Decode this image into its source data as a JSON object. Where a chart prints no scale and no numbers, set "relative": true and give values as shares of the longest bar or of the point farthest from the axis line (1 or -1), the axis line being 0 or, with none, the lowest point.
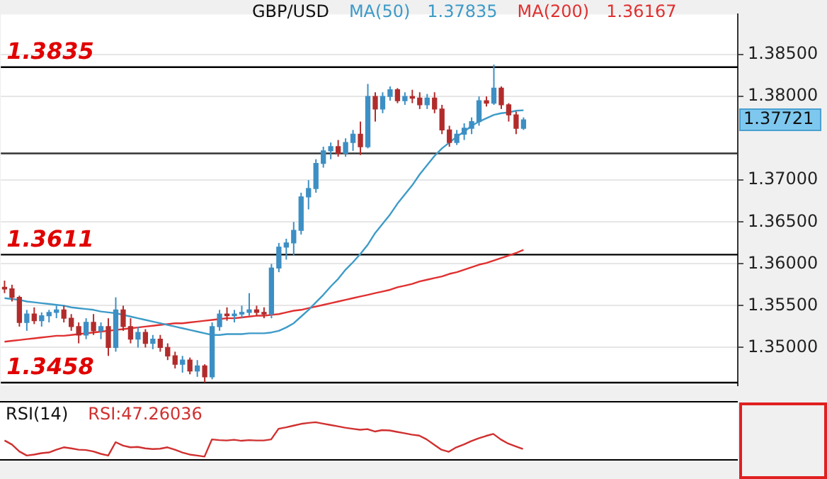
{
  "chart_data": [
    {
      "type": "candlestick",
      "title": "GBP/USD",
      "legend": "top",
      "grid": "y",
      "tick_labels": "y",
      "categories": [
        null,
        null,
        null,
        null,
        null,
        null,
        null,
        null,
        null,
        null,
        null,
        null,
        null,
        null,
        null,
        null,
        null,
        null,
        null,
        null,
        null,
        null,
        null,
        null,
        null,
        null,
        null,
        null,
        null,
        null,
        null,
        null,
        null,
        null,
        null,
        null,
        null,
        null,
        null,
        null,
        null,
        null,
        null,
        null,
        null,
        null,
        null,
        null,
        null,
        null,
        null,
        null,
        null,
        null,
        null,
        null,
        null,
        null,
        null,
        null,
        null,
        null,
        null,
        null,
        null,
        null,
        null,
        null,
        null,
        null,
        null
      ],
      "ohlc": [
        [
          1.3572,
          1.358,
          1.3565,
          1.357
        ],
        [
          1.357,
          1.3575,
          1.3555,
          1.356
        ],
        [
          1.356,
          1.3562,
          1.3525,
          1.353
        ],
        [
          1.353,
          1.3545,
          1.352,
          1.354
        ],
        [
          1.354,
          1.3548,
          1.3528,
          1.3532
        ],
        [
          1.3532,
          1.3542,
          1.3525,
          1.3538
        ],
        [
          1.3538,
          1.3545,
          1.353,
          1.3542
        ],
        [
          1.3542,
          1.355,
          1.3535,
          1.3545
        ],
        [
          1.3545,
          1.355,
          1.353,
          1.3535
        ],
        [
          1.3535,
          1.354,
          1.352,
          1.3525
        ],
        [
          1.3525,
          1.353,
          1.3505,
          1.3515
        ],
        [
          1.3515,
          1.3535,
          1.351,
          1.353
        ],
        [
          1.353,
          1.354,
          1.3515,
          1.352
        ],
        [
          1.352,
          1.353,
          1.351,
          1.3525
        ],
        [
          1.3525,
          1.3535,
          1.349,
          1.35
        ],
        [
          1.35,
          1.356,
          1.3495,
          1.3545
        ],
        [
          1.3545,
          1.355,
          1.352,
          1.3525
        ],
        [
          1.3525,
          1.3535,
          1.3505,
          1.351
        ],
        [
          1.351,
          1.3525,
          1.35,
          1.3518
        ],
        [
          1.3518,
          1.3522,
          1.35,
          1.3505
        ],
        [
          1.3505,
          1.3515,
          1.3498,
          1.351
        ],
        [
          1.351,
          1.3515,
          1.3495,
          1.35
        ],
        [
          1.35,
          1.3505,
          1.3485,
          1.349
        ],
        [
          1.349,
          1.3495,
          1.3475,
          1.348
        ],
        [
          1.348,
          1.349,
          1.347,
          1.3485
        ],
        [
          1.3485,
          1.3488,
          1.3468,
          1.3472
        ],
        [
          1.3472,
          1.3485,
          1.3465,
          1.3478
        ],
        [
          1.3478,
          1.348,
          1.3458,
          1.3465
        ],
        [
          1.3465,
          1.353,
          1.3462,
          1.3525
        ],
        [
          1.3525,
          1.3545,
          1.352,
          1.354
        ],
        [
          1.354,
          1.3548,
          1.3532,
          1.3538
        ],
        [
          1.3538,
          1.3545,
          1.353,
          1.354
        ],
        [
          1.354,
          1.355,
          1.3535,
          1.3542
        ],
        [
          1.3542,
          1.3565,
          1.3538,
          1.3545
        ],
        [
          1.3545,
          1.355,
          1.3538,
          1.3542
        ],
        [
          1.3542,
          1.3548,
          1.3535,
          1.354
        ],
        [
          1.354,
          1.36,
          1.3535,
          1.3595
        ],
        [
          1.3595,
          1.3625,
          1.359,
          1.362
        ],
        [
          1.362,
          1.363,
          1.3605,
          1.3625
        ],
        [
          1.3625,
          1.365,
          1.361,
          1.364
        ],
        [
          1.364,
          1.3685,
          1.3635,
          1.368
        ],
        [
          1.368,
          1.37,
          1.3665,
          1.369
        ],
        [
          1.369,
          1.3725,
          1.3685,
          1.372
        ],
        [
          1.372,
          1.374,
          1.3715,
          1.3735
        ],
        [
          1.3735,
          1.3745,
          1.3725,
          1.374
        ],
        [
          1.374,
          1.3748,
          1.3728,
          1.3732
        ],
        [
          1.3732,
          1.375,
          1.3728,
          1.3745
        ],
        [
          1.3745,
          1.376,
          1.3735,
          1.3755
        ],
        [
          1.3755,
          1.377,
          1.373,
          1.374
        ],
        [
          1.374,
          1.3815,
          1.3738,
          1.38
        ],
        [
          1.38,
          1.3805,
          1.377,
          1.3785
        ],
        [
          1.3785,
          1.3805,
          1.378,
          1.38
        ],
        [
          1.38,
          1.3812,
          1.3795,
          1.3808
        ],
        [
          1.3808,
          1.381,
          1.3792,
          1.3795
        ],
        [
          1.3795,
          1.3805,
          1.379,
          1.38
        ],
        [
          1.38,
          1.3808,
          1.3792,
          1.3798
        ],
        [
          1.3798,
          1.3805,
          1.3785,
          1.379
        ],
        [
          1.379,
          1.3803,
          1.3785,
          1.3798
        ],
        [
          1.3798,
          1.3805,
          1.378,
          1.3785
        ],
        [
          1.3785,
          1.379,
          1.3755,
          1.376
        ],
        [
          1.376,
          1.3765,
          1.374,
          1.3745
        ],
        [
          1.3745,
          1.376,
          1.3742,
          1.3755
        ],
        [
          1.3755,
          1.3768,
          1.3748,
          1.3762
        ],
        [
          1.3762,
          1.3775,
          1.3755,
          1.377
        ],
        [
          1.377,
          1.38,
          1.3765,
          1.3795
        ],
        [
          1.3795,
          1.38,
          1.3788,
          1.3792
        ],
        [
          1.3792,
          1.3838,
          1.379,
          1.381
        ],
        [
          1.381,
          1.3812,
          1.3785,
          1.379
        ],
        [
          1.379,
          1.3792,
          1.377,
          1.3778
        ],
        [
          1.3778,
          1.3782,
          1.3755,
          1.3762
        ],
        [
          1.3762,
          1.3775,
          1.376,
          1.37721
        ]
      ],
      "series": [
        {
          "name": "MA(50)",
          "type": "line",
          "color": "#3d9bc8",
          "values": [
            1.3559,
            1.3558,
            1.3557,
            1.3555,
            1.3554,
            1.3553,
            1.3552,
            1.3551,
            1.355,
            1.3548,
            1.3547,
            1.3546,
            1.3545,
            1.3543,
            1.3542,
            1.3541,
            1.3539,
            1.3537,
            1.3535,
            1.3533,
            1.3531,
            1.3529,
            1.3527,
            1.3525,
            1.3523,
            1.3521,
            1.3519,
            1.3517,
            1.3515,
            1.3515,
            1.3516,
            1.3516,
            1.3516,
            1.3517,
            1.3517,
            1.3517,
            1.3518,
            1.352,
            1.3524,
            1.3529,
            1.3537,
            1.3545,
            1.3554,
            1.3563,
            1.3573,
            1.3582,
            1.3593,
            1.3602,
            1.3612,
            1.3623,
            1.3637,
            1.3648,
            1.3659,
            1.3672,
            1.3683,
            1.3694,
            1.3707,
            1.3718,
            1.3729,
            1.3738,
            1.3745,
            1.3752,
            1.3758,
            1.3765,
            1.377,
            1.3774,
            1.3778,
            1.378,
            1.3781,
            1.3783,
            1.37835
          ]
        },
        {
          "name": "MA(200)",
          "type": "line",
          "color": "#e03030",
          "values": [
            1.3507,
            1.3508,
            1.3509,
            1.351,
            1.3511,
            1.3512,
            1.3513,
            1.3514,
            1.3514,
            1.3515,
            1.3516,
            1.3517,
            1.3518,
            1.3519,
            1.352,
            1.3521,
            1.3522,
            1.3523,
            1.3524,
            1.3525,
            1.3526,
            1.3527,
            1.3528,
            1.3529,
            1.3529,
            1.353,
            1.3531,
            1.3532,
            1.3533,
            1.3534,
            1.3535,
            1.3535,
            1.3536,
            1.3537,
            1.3538,
            1.3538,
            1.3539,
            1.354,
            1.3542,
            1.3544,
            1.3545,
            1.3547,
            1.3549,
            1.3551,
            1.3553,
            1.3555,
            1.3557,
            1.3559,
            1.3561,
            1.3563,
            1.3565,
            1.3567,
            1.3569,
            1.3572,
            1.3574,
            1.3576,
            1.3579,
            1.3581,
            1.3583,
            1.3585,
            1.3588,
            1.359,
            1.3593,
            1.3596,
            1.3599,
            1.3601,
            1.3604,
            1.3607,
            1.361,
            1.3613,
            1.36167
          ]
        }
      ],
      "ylim": [
        1.3455,
        1.3898
      ],
      "yticks": [
        {
          "value": 1.35,
          "label": "1.35000"
        },
        {
          "value": 1.355,
          "label": "1.35500"
        },
        {
          "value": 1.36,
          "label": "1.36000"
        },
        {
          "value": 1.365,
          "label": "1.36500"
        },
        {
          "value": 1.37,
          "label": "1.37000"
        },
        {
          "value": 1.38,
          "label": "1.38000"
        },
        {
          "value": 1.385,
          "label": "1.38500"
        }
      ],
      "ref_lines": [
        {
          "axis": "y",
          "value": 1.3835,
          "label": "1.3835",
          "color": "#000000"
        },
        {
          "axis": "y",
          "value": 1.3611,
          "label": "1.3611",
          "color": "#000000"
        },
        {
          "axis": "y",
          "value": 1.3458,
          "label": "1.3458",
          "color": "#000000"
        },
        {
          "axis": "y",
          "value": 1.3732,
          "color": "#333333"
        }
      ],
      "annotations": [
        "1.37835",
        "1.36167",
        "1.37721"
      ]
    },
    {
      "type": "line",
      "title": "RSI(14)",
      "relative": true,
      "categories": [
        null,
        null,
        null,
        null,
        null,
        null,
        null,
        null,
        null,
        null,
        null,
        null,
        null,
        null,
        null,
        null,
        null,
        null,
        null,
        null,
        null,
        null,
        null,
        null,
        null,
        null,
        null,
        null,
        null,
        null,
        null,
        null,
        null,
        null,
        null,
        null,
        null,
        null,
        null,
        null,
        null,
        null,
        null,
        null,
        null,
        null,
        null,
        null,
        null,
        null,
        null,
        null,
        null,
        null,
        null,
        null,
        null,
        null,
        null,
        null,
        null,
        null,
        null,
        null,
        null,
        null,
        null,
        null,
        null,
        null,
        null
      ],
      "series": [
        {
          "color": "#d03030",
          "values": [
            0.47,
            0.35,
            0.15,
            0.03,
            0.06,
            0.1,
            0.12,
            0.2,
            0.27,
            0.24,
            0.2,
            0.19,
            0.15,
            0.08,
            0.03,
            0.42,
            0.32,
            0.27,
            0.28,
            0.24,
            0.22,
            0.23,
            0.27,
            0.2,
            0.12,
            0.06,
            0.03,
            0,
            0.5,
            0.48,
            0.47,
            0.49,
            0.46,
            0.48,
            0.47,
            0.47,
            0.5,
            0.81,
            0.85,
            0.9,
            0.95,
            0.98,
            1,
            0.96,
            0.92,
            0.88,
            0.84,
            0.81,
            0.78,
            0.8,
            0.73,
            0.77,
            0.76,
            0.72,
            0.68,
            0.64,
            0.61,
            0.5,
            0.35,
            0.2,
            0.14,
            0.27,
            0.35,
            0.45,
            0.53,
            0.6,
            0.66,
            0.5,
            0.38,
            0.3,
            0.22
          ]
        }
      ],
      "annotations": [
        "RSI:47.26036"
      ]
    }
  ]
}
